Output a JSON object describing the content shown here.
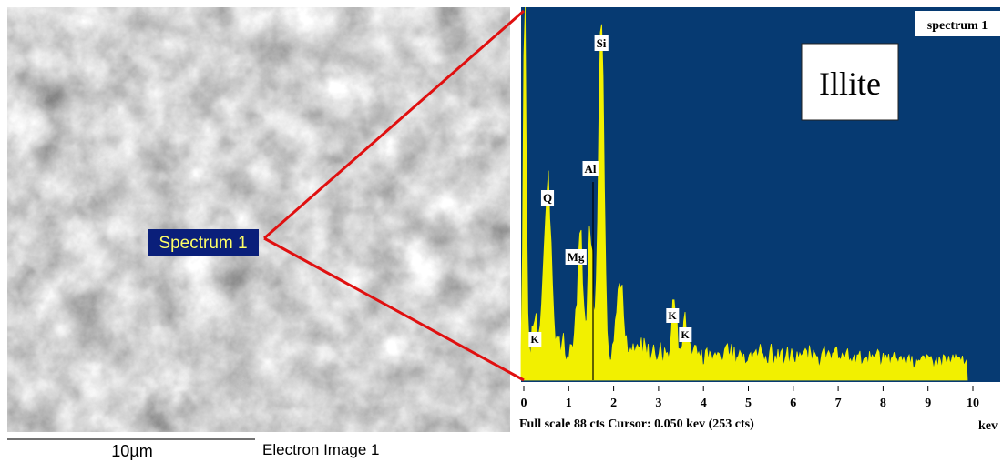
{
  "sem_image": {
    "label": "Spectrum 1",
    "scale_bar": "10µm",
    "caption": "Electron Image 1"
  },
  "spectrum": {
    "title": "spectrum 1",
    "mineral": "Illite",
    "peak_labels": [
      "Si",
      "Al",
      "Q",
      "Mg",
      "K",
      "K",
      "K"
    ],
    "x_ticks": [
      0,
      1,
      2,
      3,
      4,
      5,
      6,
      7,
      8,
      9,
      10
    ],
    "x_unit": "kev",
    "footer": "Full scale 88 cts Cursor: 0.050 kev (253 cts)"
  }
}
